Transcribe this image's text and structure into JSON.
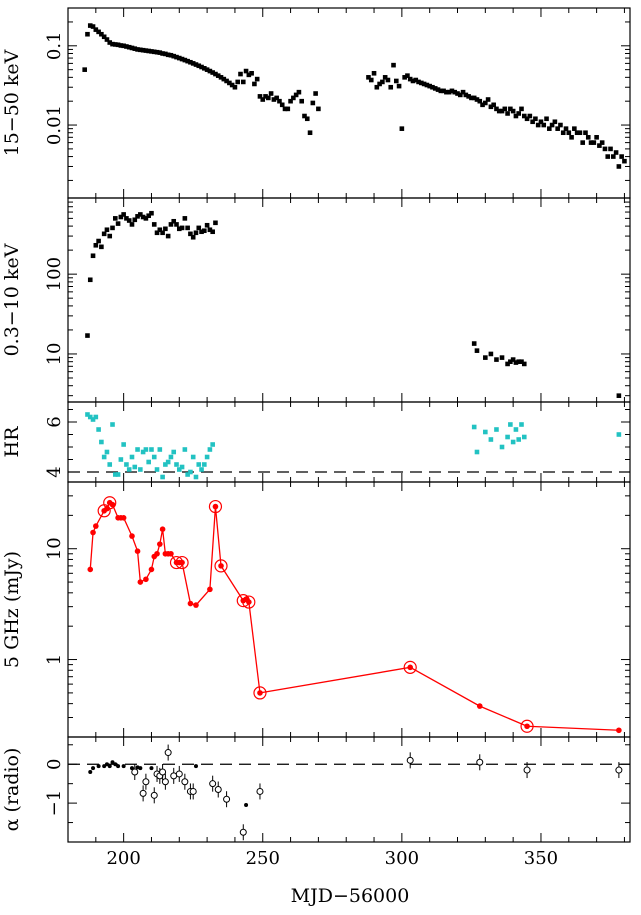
{
  "figure": {
    "xlabel": "MJD−56000",
    "x_ticks": [
      "200",
      "250",
      "300",
      "350"
    ],
    "xlim": [
      180,
      382
    ]
  },
  "chart_data": [
    {
      "type": "scatter",
      "ylabel": "15−50 keV",
      "yscale": "log",
      "ylim": [
        0.0012,
        0.3
      ],
      "y_ticks": [
        {
          "value": 0.01,
          "label": "0.01"
        },
        {
          "value": 0.1,
          "label": "0.1"
        }
      ],
      "color": "#000000",
      "series": [
        {
          "x": [
            186,
            187,
            188,
            189,
            190,
            191,
            192,
            193,
            194,
            195,
            196,
            197,
            198,
            199,
            200,
            201,
            202,
            203,
            204,
            205,
            206,
            207,
            208,
            209,
            210,
            211,
            212,
            213,
            214,
            215,
            216,
            217,
            218,
            219,
            220,
            221,
            222,
            223,
            224,
            225,
            226,
            227,
            228,
            229,
            230,
            231,
            232,
            233,
            234,
            235,
            236,
            237,
            238,
            239,
            240,
            241,
            242,
            243,
            244,
            245,
            246,
            247,
            248,
            249,
            250,
            251,
            252,
            253,
            254,
            255,
            256,
            257,
            258,
            259,
            260,
            261,
            262,
            263,
            264,
            265,
            266,
            267,
            268,
            269,
            270,
            288,
            289,
            290,
            291,
            292,
            293,
            294,
            295,
            296,
            297,
            298,
            299,
            300,
            301,
            302,
            303,
            304,
            305,
            306,
            307,
            308,
            309,
            310,
            311,
            312,
            313,
            314,
            315,
            316,
            317,
            318,
            319,
            320,
            321,
            322,
            323,
            324,
            325,
            326,
            327,
            328,
            329,
            330,
            331,
            332,
            333,
            334,
            335,
            336,
            337,
            338,
            339,
            340,
            341,
            342,
            343,
            344,
            345,
            346,
            347,
            348,
            349,
            350,
            351,
            352,
            353,
            354,
            355,
            356,
            357,
            358,
            359,
            360,
            361,
            362,
            363,
            364,
            365,
            366,
            367,
            368,
            369,
            370,
            371,
            372,
            373,
            374,
            375,
            376,
            377,
            378,
            379,
            380
          ],
          "y": [
            0.05,
            0.14,
            0.18,
            0.175,
            0.16,
            0.15,
            0.14,
            0.13,
            0.12,
            0.11,
            0.105,
            0.104,
            0.103,
            0.101,
            0.1,
            0.098,
            0.096,
            0.094,
            0.092,
            0.09,
            0.089,
            0.088,
            0.087,
            0.086,
            0.085,
            0.084,
            0.083,
            0.082,
            0.08,
            0.079,
            0.077,
            0.076,
            0.074,
            0.072,
            0.07,
            0.068,
            0.066,
            0.064,
            0.062,
            0.06,
            0.058,
            0.056,
            0.054,
            0.052,
            0.05,
            0.048,
            0.046,
            0.044,
            0.042,
            0.04,
            0.038,
            0.036,
            0.034,
            0.032,
            0.03,
            0.035,
            0.044,
            0.035,
            0.048,
            0.043,
            0.045,
            0.033,
            0.038,
            0.023,
            0.021,
            0.023,
            0.022,
            0.025,
            0.021,
            0.022,
            0.02,
            0.018,
            0.016,
            0.016,
            0.02,
            0.022,
            0.024,
            0.026,
            0.02,
            0.013,
            0.012,
            0.008,
            0.019,
            0.025,
            0.016,
            0.04,
            0.037,
            0.045,
            0.03,
            0.033,
            0.035,
            0.04,
            0.037,
            0.03,
            0.057,
            0.036,
            0.031,
            0.009,
            0.04,
            0.042,
            0.038,
            0.036,
            0.037,
            0.035,
            0.034,
            0.033,
            0.032,
            0.031,
            0.03,
            0.029,
            0.028,
            0.027,
            0.027,
            0.026,
            0.026,
            0.027,
            0.026,
            0.025,
            0.024,
            0.026,
            0.024,
            0.023,
            0.022,
            0.022,
            0.021,
            0.02,
            0.018,
            0.019,
            0.021,
            0.017,
            0.018,
            0.016,
            0.015,
            0.015,
            0.016,
            0.014,
            0.016,
            0.015,
            0.013,
            0.014,
            0.016,
            0.013,
            0.012,
            0.013,
            0.011,
            0.012,
            0.01,
            0.011,
            0.01,
            0.012,
            0.009,
            0.01,
            0.011,
            0.009,
            0.01,
            0.008,
            0.009,
            0.008,
            0.007,
            0.009,
            0.008,
            0.008,
            0.006,
            0.008,
            0.007,
            0.006,
            0.006,
            0.007,
            0.0055,
            0.006,
            0.005,
            0.004,
            0.005,
            0.004,
            0.0045,
            0.003,
            0.004,
            0.0035
          ]
        }
      ]
    },
    {
      "type": "scatter",
      "ylabel": "0.3−10 keV",
      "yscale": "log",
      "ylim": [
        2.5,
        900
      ],
      "y_ticks": [
        {
          "value": 10,
          "label": "10"
        },
        {
          "value": 100,
          "label": "100"
        }
      ],
      "color": "#000000",
      "series": [
        {
          "x": [
            187,
            188,
            189,
            190,
            191,
            192,
            193,
            194,
            195,
            196,
            197,
            198,
            199,
            200,
            201,
            202,
            203,
            204,
            205,
            206,
            207,
            208,
            209,
            210,
            211,
            212,
            213,
            214,
            215,
            216,
            217,
            218,
            219,
            220,
            221,
            222,
            223,
            224,
            225,
            226,
            227,
            228,
            229,
            230,
            231,
            232,
            233,
            326,
            327,
            330,
            332,
            334,
            336,
            338,
            339,
            340,
            341,
            342,
            343,
            344,
            378
          ],
          "y": [
            17,
            85,
            170,
            230,
            260,
            220,
            320,
            360,
            300,
            380,
            500,
            430,
            520,
            560,
            500,
            470,
            420,
            480,
            530,
            560,
            520,
            500,
            540,
            580,
            420,
            330,
            360,
            330,
            370,
            300,
            420,
            460,
            420,
            370,
            380,
            500,
            380,
            320,
            290,
            330,
            380,
            340,
            350,
            410,
            360,
            340,
            440,
            13.5,
            11,
            9,
            10,
            8.5,
            9,
            7.5,
            8,
            8.5,
            7.8,
            8,
            8,
            7.5,
            3
          ]
        }
      ]
    },
    {
      "type": "scatter",
      "ylabel": "HR",
      "yscale": "linear",
      "ylim": [
        3.6,
        6.8
      ],
      "y_ticks": [
        {
          "value": 4,
          "label": "4"
        },
        {
          "value": 6,
          "label": "6"
        }
      ],
      "ref_line": 4,
      "color": "#22c2c2",
      "series": [
        {
          "x": [
            187,
            188,
            189,
            190,
            191,
            192,
            193,
            194,
            195,
            196,
            197,
            198,
            199,
            200,
            201,
            202,
            203,
            204,
            205,
            206,
            207,
            208,
            209,
            210,
            211,
            212,
            213,
            214,
            215,
            216,
            217,
            218,
            219,
            220,
            221,
            222,
            223,
            224,
            225,
            226,
            227,
            228,
            229,
            230,
            231,
            232,
            326,
            327,
            330,
            332,
            334,
            336,
            338,
            339,
            340,
            341,
            342,
            343,
            344,
            378
          ],
          "y": [
            6.3,
            6.2,
            6.1,
            6.2,
            5.7,
            5.2,
            4.6,
            4.8,
            4.3,
            5.9,
            3.9,
            3.9,
            4.5,
            5.1,
            4.3,
            4.1,
            4.6,
            4.2,
            4.9,
            4.1,
            4.8,
            4.9,
            4.4,
            4.9,
            4.6,
            4.1,
            4.9,
            3.8,
            4.3,
            4.4,
            4.6,
            4.8,
            4.3,
            4.1,
            4.2,
            4.9,
            3.9,
            4.0,
            4.6,
            3.8,
            4.3,
            4.1,
            4.3,
            4.6,
            4.9,
            5.1,
            5.8,
            4.8,
            5.6,
            5.3,
            5.7,
            5.0,
            5.4,
            5.9,
            5.2,
            5.7,
            5.3,
            5.9,
            5.4,
            5.5
          ]
        }
      ]
    },
    {
      "type": "line",
      "ylabel": "5 GHz (mJy)",
      "yscale": "log",
      "ylim": [
        0.2,
        40
      ],
      "y_ticks": [
        {
          "value": 1,
          "label": "1"
        },
        {
          "value": 10,
          "label": "10"
        }
      ],
      "color": "#ff0000",
      "series": [
        {
          "x": [
            188,
            189,
            190,
            193,
            194,
            195,
            196,
            198,
            199,
            200,
            203,
            205,
            206,
            208,
            210,
            211,
            212,
            213,
            214,
            215,
            216,
            217,
            219,
            220,
            221,
            224,
            226,
            231,
            233,
            235,
            243,
            244,
            245,
            249,
            303,
            328,
            345,
            378
          ],
          "y": [
            6.5,
            14,
            16,
            22,
            23,
            26,
            25,
            19,
            19,
            19,
            13,
            9.5,
            5,
            5.3,
            6.5,
            8.5,
            9,
            11,
            15,
            9,
            9,
            9,
            7.5,
            7.5,
            7.5,
            3.2,
            3.1,
            4.3,
            24,
            7,
            3.4,
            3.5,
            3.3,
            0.5,
            0.85,
            0.38,
            0.25,
            0.23
          ],
          "circled": [
            false,
            false,
            false,
            true,
            false,
            true,
            false,
            false,
            false,
            false,
            false,
            false,
            false,
            false,
            false,
            false,
            false,
            false,
            false,
            false,
            false,
            false,
            true,
            false,
            true,
            false,
            false,
            false,
            true,
            true,
            true,
            false,
            true,
            true,
            true,
            false,
            true,
            false
          ]
        }
      ]
    },
    {
      "type": "scatter",
      "ylabel": "α (radio)",
      "yscale": "linear",
      "ylim": [
        -2.0,
        0.7
      ],
      "y_ticks": [
        {
          "value": -1,
          "label": "−1"
        },
        {
          "value": 0,
          "label": "0"
        }
      ],
      "ref_line": 0,
      "color": "#000000",
      "series": [
        {
          "x": [
            188,
            189,
            191,
            193,
            194,
            195,
            196,
            197,
            198,
            200,
            203,
            204,
            205,
            206,
            207,
            208,
            210,
            211,
            212,
            213,
            214,
            215,
            216,
            218,
            220,
            222,
            224,
            225,
            226,
            232,
            234,
            237,
            243,
            244,
            249,
            303,
            328,
            345,
            378
          ],
          "y": [
            -0.2,
            -0.1,
            -0.05,
            -0.05,
            0.0,
            -0.05,
            0.05,
            0.0,
            -0.05,
            -0.05,
            -0.1,
            -0.2,
            -0.08,
            -0.1,
            -0.75,
            -0.45,
            -0.1,
            -0.8,
            -0.25,
            -0.3,
            -0.2,
            -0.45,
            0.3,
            -0.3,
            -0.25,
            -0.45,
            -0.7,
            -0.7,
            -0.05,
            -0.5,
            -0.65,
            -0.9,
            -1.75,
            -1.05,
            -0.7,
            0.1,
            0.05,
            -0.15,
            -0.15
          ],
          "open": [
            false,
            false,
            false,
            false,
            false,
            false,
            false,
            false,
            false,
            false,
            false,
            true,
            false,
            false,
            true,
            true,
            false,
            true,
            true,
            true,
            true,
            true,
            true,
            true,
            true,
            true,
            true,
            true,
            false,
            true,
            true,
            true,
            true,
            false,
            true,
            true,
            true,
            true,
            true
          ]
        }
      ]
    }
  ]
}
